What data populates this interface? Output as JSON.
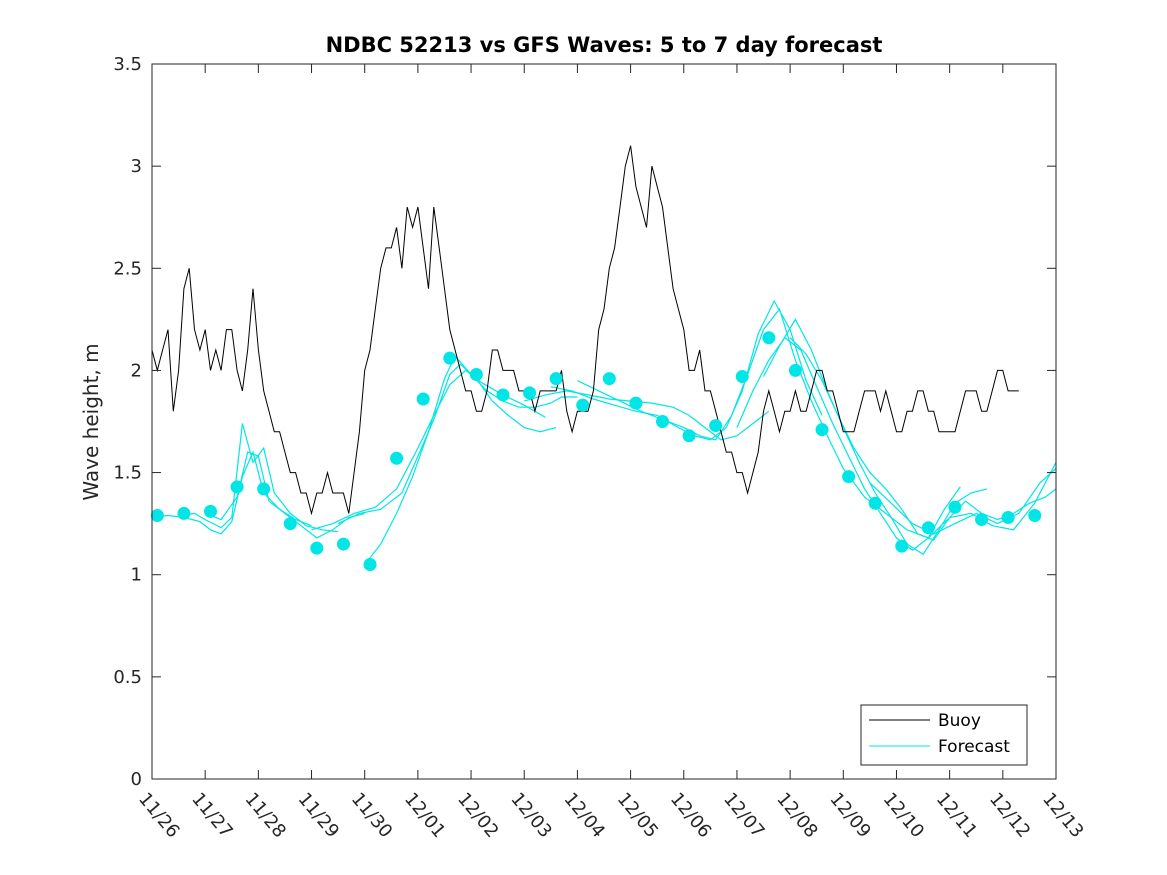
{
  "chart_data": {
    "type": "line",
    "title": "NDBC 52213 vs GFS Waves: 5 to 7 day forecast",
    "xlabel": "",
    "ylabel": "Wave height, m",
    "ylim": [
      0,
      3.5
    ],
    "yticks": [
      0,
      0.5,
      1,
      1.5,
      2,
      2.5,
      3,
      3.5
    ],
    "ytick_labels": [
      "0",
      "0.5",
      "1",
      "1.5",
      "2",
      "2.5",
      "3",
      "3.5"
    ],
    "xlim": [
      0,
      17
    ],
    "xticks": [
      0,
      1,
      2,
      3,
      4,
      5,
      6,
      7,
      8,
      9,
      10,
      11,
      12,
      13,
      14,
      15,
      16,
      17
    ],
    "xtick_labels": [
      "11/26",
      "11/27",
      "11/28",
      "11/29",
      "11/30",
      "12/01",
      "12/02",
      "12/03",
      "12/04",
      "12/05",
      "12/06",
      "12/07",
      "12/08",
      "12/09",
      "12/10",
      "12/11",
      "12/12",
      "12/13"
    ],
    "x_units": "days since 11/26",
    "grid": false,
    "legend_position": "bottom-right",
    "legend": [
      "Buoy",
      "Forecast"
    ],
    "colors": {
      "buoy": "#000000",
      "forecast": "#00e5e5",
      "axis": "#262626"
    },
    "series": [
      {
        "name": "Buoy",
        "style": "line",
        "x": [
          0.0,
          0.1,
          0.2,
          0.3,
          0.4,
          0.5,
          0.6,
          0.7,
          0.8,
          0.9,
          1.0,
          1.1,
          1.2,
          1.3,
          1.4,
          1.5,
          1.6,
          1.7,
          1.8,
          1.9,
          2.0,
          2.1,
          2.2,
          2.3,
          2.4,
          2.5,
          2.6,
          2.7,
          2.8,
          2.9,
          3.0,
          3.1,
          3.2,
          3.3,
          3.4,
          3.5,
          3.6,
          3.7,
          3.8,
          3.9,
          4.0,
          4.1,
          4.2,
          4.3,
          4.4,
          4.5,
          4.6,
          4.7,
          4.8,
          4.9,
          5.0,
          5.1,
          5.2,
          5.3,
          5.4,
          5.5,
          5.6,
          5.7,
          5.8,
          5.9,
          6.0,
          6.1,
          6.2,
          6.3,
          6.4,
          6.5,
          6.6,
          6.7,
          6.8,
          6.9,
          7.0,
          7.1,
          7.2,
          7.3,
          7.4,
          7.5,
          7.6,
          7.7,
          7.8,
          7.9,
          8.0,
          8.1,
          8.2,
          8.3,
          8.4,
          8.5,
          8.6,
          8.7,
          8.8,
          8.9,
          9.0,
          9.1,
          9.2,
          9.3,
          9.4,
          9.5,
          9.6,
          9.7,
          9.8,
          9.9,
          10.0,
          10.1,
          10.2,
          10.3,
          10.4,
          10.5,
          10.6,
          10.7,
          10.8,
          10.9,
          11.0,
          11.1,
          11.2,
          11.3,
          11.4,
          11.5,
          11.6,
          11.7,
          11.8,
          11.9,
          12.0,
          12.1,
          12.2,
          12.3,
          12.4,
          12.5,
          12.6,
          12.7,
          12.8,
          12.9,
          13.0,
          13.1,
          13.2,
          13.3,
          13.4,
          13.5,
          13.6,
          13.7,
          13.8,
          13.9,
          14.0,
          14.1,
          14.2,
          14.3,
          14.4,
          14.5,
          14.6,
          14.7,
          14.8,
          14.9,
          15.0,
          15.1,
          15.2,
          15.3,
          15.4,
          15.5,
          15.6,
          15.7,
          15.8,
          15.9,
          16.0,
          16.1,
          16.2,
          16.3
        ],
        "y": [
          2.1,
          2.0,
          2.1,
          2.2,
          1.8,
          2.0,
          2.4,
          2.5,
          2.2,
          2.1,
          2.2,
          2.0,
          2.1,
          2.0,
          2.2,
          2.2,
          2.0,
          1.9,
          2.1,
          2.4,
          2.1,
          1.9,
          1.8,
          1.7,
          1.7,
          1.6,
          1.5,
          1.5,
          1.4,
          1.4,
          1.3,
          1.4,
          1.4,
          1.5,
          1.4,
          1.4,
          1.4,
          1.3,
          1.5,
          1.7,
          2.0,
          2.1,
          2.3,
          2.5,
          2.6,
          2.6,
          2.7,
          2.5,
          2.8,
          2.7,
          2.8,
          2.6,
          2.4,
          2.8,
          2.6,
          2.4,
          2.2,
          2.1,
          2.0,
          1.9,
          1.9,
          1.8,
          1.8,
          1.9,
          2.1,
          2.1,
          2.0,
          2.0,
          2.0,
          1.9,
          1.9,
          1.9,
          1.8,
          1.9,
          1.9,
          1.9,
          1.9,
          2.0,
          1.8,
          1.7,
          1.8,
          1.8,
          1.8,
          1.9,
          2.2,
          2.3,
          2.5,
          2.6,
          2.8,
          3.0,
          3.1,
          2.9,
          2.8,
          2.7,
          3.0,
          2.9,
          2.8,
          2.6,
          2.4,
          2.3,
          2.2,
          2.0,
          2.0,
          2.1,
          1.9,
          1.9,
          1.8,
          1.7,
          1.6,
          1.6,
          1.5,
          1.5,
          1.4,
          1.5,
          1.6,
          1.8,
          1.9,
          1.8,
          1.7,
          1.8,
          1.8,
          1.9,
          1.8,
          1.8,
          1.9,
          2.0,
          2.0,
          1.9,
          1.9,
          1.8,
          1.7,
          1.7,
          1.7,
          1.8,
          1.9,
          1.9,
          1.9,
          1.8,
          1.9,
          1.8,
          1.7,
          1.7,
          1.8,
          1.8,
          1.9,
          1.9,
          1.8,
          1.8,
          1.7,
          1.7,
          1.7,
          1.7,
          1.8,
          1.9,
          1.9,
          1.9,
          1.8,
          1.8,
          1.9,
          2.0,
          2.0,
          1.9,
          1.9,
          1.9
        ]
      },
      {
        "name": "Forecast",
        "style": "lines",
        "runs": [
          {
            "x": [
              0.0,
              0.3,
              0.6,
              0.9,
              1.1,
              1.3,
              1.5,
              1.7,
              1.9,
              2.1,
              2.4,
              2.7,
              3.0
            ],
            "y": [
              1.28,
              1.29,
              1.28,
              1.26,
              1.22,
              1.2,
              1.26,
              1.48,
              1.6,
              1.4,
              1.32,
              1.27,
              1.24
            ]
          },
          {
            "x": [
              0.5,
              0.8,
              1.0,
              1.3,
              1.5,
              1.7,
              1.9,
              2.1,
              2.3,
              2.6,
              2.9,
              3.2,
              3.5
            ],
            "y": [
              1.29,
              1.3,
              1.27,
              1.23,
              1.28,
              1.74,
              1.55,
              1.62,
              1.4,
              1.3,
              1.24,
              1.22,
              1.21
            ]
          },
          {
            "x": [
              1.0,
              1.3,
              1.6,
              1.8,
              2.0,
              2.2,
              2.5,
              2.8,
              3.1,
              3.4,
              3.7,
              4.0
            ],
            "y": [
              1.3,
              1.27,
              1.38,
              1.6,
              1.58,
              1.36,
              1.3,
              1.24,
              1.18,
              1.22,
              1.28,
              1.3
            ]
          },
          {
            "x": [
              3.0,
              3.4,
              3.8,
              4.2,
              4.6,
              5.0,
              5.3,
              5.6,
              5.9,
              6.2,
              6.6,
              7.0,
              7.4
            ],
            "y": [
              1.22,
              1.25,
              1.3,
              1.33,
              1.42,
              1.62,
              1.78,
              1.93,
              2.0,
              1.94,
              1.88,
              1.83,
              1.77
            ]
          },
          {
            "x": [
              3.5,
              3.9,
              4.3,
              4.7,
              5.0,
              5.3,
              5.6,
              5.8,
              6.1,
              6.4,
              6.7,
              7.0,
              7.3,
              7.6
            ],
            "y": [
              1.25,
              1.3,
              1.32,
              1.4,
              1.58,
              1.76,
              1.98,
              2.03,
              1.96,
              1.85,
              1.78,
              1.72,
              1.7,
              1.72
            ]
          },
          {
            "x": [
              4.0,
              4.3,
              4.6,
              4.9,
              5.2,
              5.5,
              5.7,
              6.0,
              6.3,
              6.6,
              6.9,
              7.2,
              7.5,
              7.7,
              8.0
            ],
            "y": [
              1.05,
              1.15,
              1.3,
              1.48,
              1.7,
              1.96,
              2.07,
              1.98,
              1.9,
              1.85,
              1.82,
              1.82,
              1.84,
              1.87,
              1.87
            ]
          },
          {
            "x": [
              7.0,
              7.4,
              7.8,
              8.2,
              8.6,
              9.0,
              9.4,
              9.8,
              10.1,
              10.4,
              10.7,
              11.0,
              11.3,
              11.6
            ],
            "y": [
              1.85,
              1.88,
              1.9,
              1.88,
              1.86,
              1.85,
              1.84,
              1.82,
              1.78,
              1.72,
              1.66,
              1.68,
              1.74,
              1.8
            ]
          },
          {
            "x": [
              7.5,
              7.9,
              8.3,
              8.7,
              9.1,
              9.5,
              9.9,
              10.2,
              10.5,
              10.8,
              11.1,
              11.4,
              11.7,
              12.0,
              12.3,
              12.6
            ],
            "y": [
              1.92,
              1.9,
              1.86,
              1.83,
              1.8,
              1.78,
              1.72,
              1.68,
              1.66,
              1.72,
              1.9,
              2.18,
              2.34,
              2.2,
              1.95,
              1.78
            ]
          },
          {
            "x": [
              8.0,
              8.4,
              8.8,
              9.2,
              9.6,
              10.0,
              10.3,
              10.6,
              10.9,
              11.2,
              11.5,
              11.8,
              12.1,
              12.4,
              12.7,
              13.0
            ],
            "y": [
              1.95,
              1.9,
              1.85,
              1.8,
              1.76,
              1.72,
              1.68,
              1.66,
              1.78,
              1.98,
              2.2,
              2.3,
              2.05,
              1.85,
              1.68,
              1.52
            ]
          },
          {
            "x": [
              11.0,
              11.3,
              11.6,
              11.9,
              12.2,
              12.5,
              12.8,
              13.1,
              13.4,
              13.7,
              14.0,
              14.3,
              14.6,
              14.9,
              15.2
            ],
            "y": [
              1.72,
              1.9,
              2.05,
              2.16,
              2.1,
              1.92,
              1.74,
              1.58,
              1.42,
              1.3,
              1.18,
              1.12,
              1.18,
              1.32,
              1.43
            ]
          },
          {
            "x": [
              11.5,
              11.8,
              12.1,
              12.4,
              12.7,
              13.0,
              13.3,
              13.6,
              13.9,
              14.2,
              14.5,
              14.8,
              15.1,
              15.4,
              15.7
            ],
            "y": [
              1.97,
              2.12,
              2.25,
              2.1,
              1.9,
              1.72,
              1.55,
              1.4,
              1.28,
              1.15,
              1.1,
              1.22,
              1.35,
              1.4,
              1.42
            ]
          },
          {
            "x": [
              12.0,
              12.3,
              12.6,
              12.9,
              13.2,
              13.5,
              13.8,
              14.1,
              14.4,
              14.7,
              15.0,
              15.3,
              15.6,
              15.9,
              16.2,
              16.5,
              16.8,
              17.0
            ],
            "y": [
              2.16,
              2.08,
              1.95,
              1.78,
              1.62,
              1.5,
              1.42,
              1.32,
              1.2,
              1.17,
              1.28,
              1.36,
              1.3,
              1.27,
              1.3,
              1.35,
              1.38,
              1.42
            ]
          },
          {
            "x": [
              13.0,
              13.4,
              13.8,
              14.2,
              14.6,
              15.0,
              15.4,
              15.8,
              16.2,
              16.6,
              17.0
            ],
            "y": [
              1.52,
              1.38,
              1.3,
              1.22,
              1.18,
              1.28,
              1.3,
              1.24,
              1.22,
              1.35,
              1.55
            ]
          },
          {
            "x": [
              13.5,
              13.9,
              14.3,
              14.7,
              15.1,
              15.5,
              15.9,
              16.3,
              16.7,
              17.0
            ],
            "y": [
              1.45,
              1.35,
              1.25,
              1.2,
              1.25,
              1.3,
              1.25,
              1.3,
              1.45,
              1.52
            ]
          }
        ]
      },
      {
        "name": "Forecast markers",
        "style": "markers",
        "x": [
          0.1,
          0.6,
          1.1,
          1.6,
          2.1,
          2.6,
          3.1,
          3.6,
          4.1,
          4.6,
          5.1,
          5.6,
          6.1,
          6.6,
          7.1,
          7.6,
          8.1,
          8.6,
          9.1,
          9.6,
          10.1,
          10.6,
          11.1,
          11.6,
          12.1,
          12.6,
          13.1,
          13.6,
          14.1,
          14.6,
          15.1,
          15.6,
          16.1,
          16.6
        ],
        "y": [
          1.29,
          1.3,
          1.31,
          1.43,
          1.42,
          1.25,
          1.13,
          1.15,
          1.05,
          1.57,
          1.86,
          2.06,
          1.98,
          1.88,
          1.89,
          1.96,
          1.83,
          1.96,
          1.84,
          1.75,
          1.68,
          1.73,
          1.97,
          2.16,
          2.0,
          1.71,
          1.48,
          1.35,
          1.14,
          1.23,
          1.33,
          1.27,
          1.28,
          1.29
        ]
      }
    ]
  }
}
